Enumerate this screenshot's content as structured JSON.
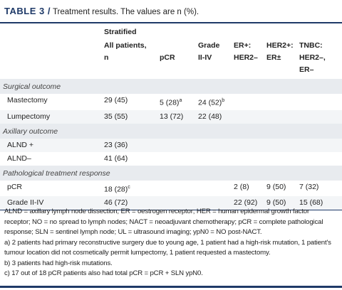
{
  "title": {
    "label": "TABLE 3 /",
    "text": "Treatment results. The values are n (%)."
  },
  "table": {
    "group_header": "Stratified",
    "columns": [
      [
        "All patients,",
        "n"
      ],
      [
        "pCR"
      ],
      [
        "Grade",
        "II-IV"
      ],
      [
        "ER+:",
        "HER2–"
      ],
      [
        "HER2+:",
        "ER±"
      ],
      [
        "TNBC:",
        "HER2–, ER–"
      ]
    ],
    "rows": [
      {
        "section": "Surgical outcome"
      },
      {
        "label": "Mastectomy",
        "cells": [
          "29 (45)",
          {
            "text": "5 (28)",
            "note": "a"
          },
          {
            "text": "24 (52)",
            "note": "b"
          },
          null,
          null,
          null
        ]
      },
      {
        "label": "Lumpectomy",
        "cells": [
          "35 (55)",
          "13 (72)",
          "22 (48)",
          null,
          null,
          null
        ]
      },
      {
        "section": "Axillary outcome"
      },
      {
        "label": "ALND +",
        "cells": [
          "23 (36)",
          null,
          null,
          null,
          null,
          null
        ]
      },
      {
        "label": "ALND–",
        "cells": [
          "41 (64)",
          null,
          null,
          null,
          null,
          null
        ]
      },
      {
        "section": "Pathological treatment response"
      },
      {
        "label": "pCR",
        "cells": [
          {
            "text": "18 (28)",
            "note": "c"
          },
          null,
          null,
          "2 (8)",
          "9 (50)",
          "7 (32)"
        ]
      },
      {
        "label": "Grade II-IV",
        "cells": [
          "46 (72)",
          null,
          null,
          "22 (92)",
          "9 (50)",
          "15 (68)"
        ]
      }
    ]
  },
  "footnotes": [
    "ALND = axillary lymph node dissection; ER = oestrogen receptor; HER = human epidermal growth factor receptor; NO = no spread to lymph nodes; NACT = neoadjuvant chemotherapy; pCR = complete pathological response; SLN = sentinel lymph node; UL = ultrasound imaging; ypN0 = NO post-NACT.",
    "a) 2 patients had primary reconstructive surgery due to young age, 1 patient had a high-risk mutation, 1 patient's tumour location did not cosmetically permit lumpectomy, 1 patient requested a mastectomy.",
    "b) 3 patients had high-risk mutations.",
    "c) 17 out of 18 pCR patients also had total pCR = pCR + SLN ypN0."
  ]
}
